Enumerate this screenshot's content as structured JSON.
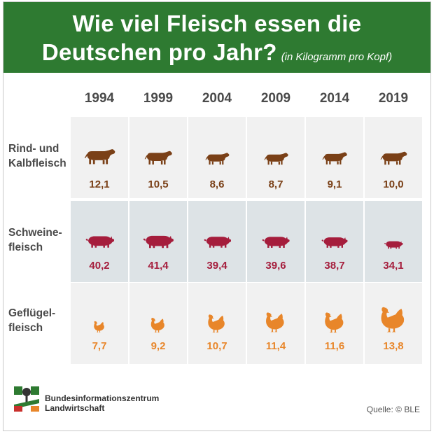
{
  "title": {
    "line1": "Wie viel Fleisch essen die",
    "line2": "Deutschen pro Jahr?",
    "subtitle": "(in Kilogramm pro Kopf)"
  },
  "colors": {
    "header": "#2e7a31",
    "beef": "#7a4017",
    "pork": "#a51d3c",
    "poultry": "#e8862a"
  },
  "chart_data": {
    "type": "table",
    "categories": [
      "1994",
      "1999",
      "2004",
      "2009",
      "2014",
      "2019"
    ],
    "series": [
      {
        "name": "Rind- und Kalbfleisch",
        "label_lines": [
          "Rind- und",
          "Kalbfleisch"
        ],
        "icon": "cow-icon",
        "values": [
          12.1,
          10.5,
          8.6,
          8.7,
          9.1,
          10.0
        ],
        "labels": [
          "12,1",
          "10,5",
          "8,6",
          "8,7",
          "9,1",
          "10,0"
        ]
      },
      {
        "name": "Schweinefleisch",
        "label_lines": [
          "Schweine-",
          "fleisch"
        ],
        "icon": "pig-icon",
        "values": [
          40.2,
          41.4,
          39.4,
          39.6,
          38.7,
          34.1
        ],
        "labels": [
          "40,2",
          "41,4",
          "39,4",
          "39,6",
          "38,7",
          "34,1"
        ]
      },
      {
        "name": "Geflügelfleisch",
        "label_lines": [
          "Geflügel-",
          "fleisch"
        ],
        "icon": "chicken-icon",
        "values": [
          7.7,
          9.2,
          10.7,
          11.4,
          11.6,
          13.8
        ],
        "labels": [
          "7,7",
          "9,2",
          "10,7",
          "11,4",
          "11,6",
          "13,8"
        ]
      }
    ]
  },
  "footer": {
    "org_line1": "Bundesinformationszentrum",
    "org_line2": "Landwirtschaft",
    "source": "Quelle: © BLE"
  }
}
